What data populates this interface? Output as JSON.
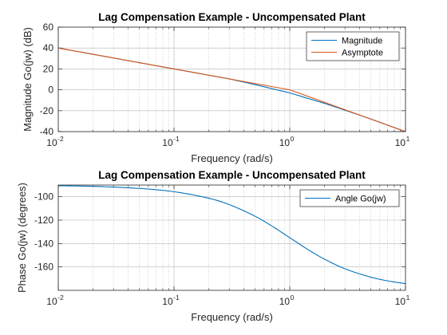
{
  "colors": {
    "magnitude": "#0072BD",
    "asymptote": "#D95319",
    "angle": "#0072BD",
    "grid": "#b4b4b4",
    "axis": "#262626"
  },
  "chart_data": [
    {
      "type": "line",
      "title": "Lag Compensation Example - Uncompensated Plant",
      "xlabel": "Frequency (rad/s)",
      "ylabel": "Magnitude Go(jw) (dB)",
      "x_scale": "log",
      "xlim": [
        0.01,
        10
      ],
      "ylim": [
        -40,
        60
      ],
      "x_ticks": [
        {
          "base": "10",
          "exp": "-2"
        },
        {
          "base": "10",
          "exp": "-1"
        },
        {
          "base": "10",
          "exp": "0"
        },
        {
          "base": "10",
          "exp": "1"
        }
      ],
      "y_ticks": [
        "60",
        "40",
        "20",
        "0",
        "-20",
        "-40"
      ],
      "grid": true,
      "legend_position": "top-right",
      "series": [
        {
          "name": "Magnitude",
          "color": "#0072BD",
          "x": [
            0.01,
            0.02,
            0.05,
            0.1,
            0.2,
            0.3,
            0.5,
            0.7,
            1,
            1.5,
            2,
            3,
            5,
            7,
            10
          ],
          "y": [
            40,
            34,
            26,
            20,
            14,
            10.4,
            5.0,
            1.1,
            -3.0,
            -8.9,
            -13.0,
            -19.5,
            -27.9,
            -33.8,
            -40.0
          ]
        },
        {
          "name": "Asymptote",
          "color": "#D95319",
          "x": [
            0.01,
            0.1,
            1,
            10
          ],
          "y": [
            40,
            20,
            0,
            -40
          ]
        }
      ]
    },
    {
      "type": "line",
      "title": "Lag Compensation Example - Uncompensated Plant",
      "xlabel": "Frequency (rad/s)",
      "ylabel": "Phase Go(jw) (degrees)",
      "x_scale": "log",
      "xlim": [
        0.01,
        10
      ],
      "ylim": [
        -180,
        -90
      ],
      "x_ticks": [
        {
          "base": "10",
          "exp": "-2"
        },
        {
          "base": "10",
          "exp": "-1"
        },
        {
          "base": "10",
          "exp": "0"
        },
        {
          "base": "10",
          "exp": "1"
        }
      ],
      "y_ticks": [
        "-100",
        "-120",
        "-140",
        "-160"
      ],
      "grid": true,
      "legend_position": "top-right",
      "series": [
        {
          "name": "Angle Go(jw)",
          "color": "#0072BD",
          "x": [
            0.01,
            0.02,
            0.05,
            0.1,
            0.2,
            0.3,
            0.5,
            0.7,
            1,
            1.5,
            2,
            3,
            5,
            7,
            10
          ],
          "y": [
            -90.6,
            -91.1,
            -92.9,
            -95.7,
            -101.3,
            -106.7,
            -116.6,
            -125.0,
            -135.0,
            -146.3,
            -153.4,
            -161.6,
            -168.7,
            -171.9,
            -174.3
          ]
        }
      ]
    }
  ]
}
